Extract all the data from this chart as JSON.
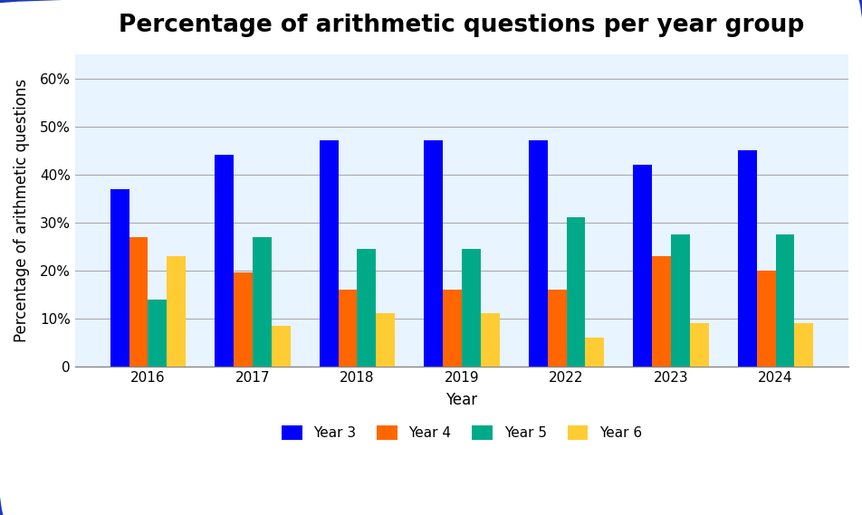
{
  "title": "Percentage of arithmetic questions per year group",
  "xlabel": "Year",
  "ylabel": "Percentage of arithmetic questions",
  "years": [
    "2016",
    "2017",
    "2018",
    "2019",
    "2022",
    "2023",
    "2024"
  ],
  "series": {
    "Year 3": [
      37,
      44,
      47,
      47,
      47,
      42,
      45
    ],
    "Year 4": [
      27,
      19.5,
      16,
      16,
      16,
      23,
      20
    ],
    "Year 5": [
      14,
      27,
      24.5,
      24.5,
      31,
      27.5,
      27.5
    ],
    "Year 6": [
      23,
      8.5,
      11,
      11,
      6,
      9,
      9
    ]
  },
  "colors": {
    "Year 3": "#0000ff",
    "Year 4": "#ff6600",
    "Year 5": "#00aa88",
    "Year 6": "#ffcc33"
  },
  "yticks": [
    0,
    10,
    20,
    30,
    40,
    50,
    60
  ],
  "ytick_labels": [
    "0",
    "10%",
    "20%",
    "30%",
    "40%",
    "50%",
    "60%"
  ],
  "ylim": [
    0,
    65
  ],
  "bar_width": 0.18,
  "fig_background": "#ffffff",
  "plot_background": "#e8f4ff",
  "border_color": "#1a3aba",
  "grid_color": "#aaaaaa",
  "title_fontsize": 19,
  "axis_label_fontsize": 12,
  "tick_fontsize": 11,
  "legend_fontsize": 11
}
